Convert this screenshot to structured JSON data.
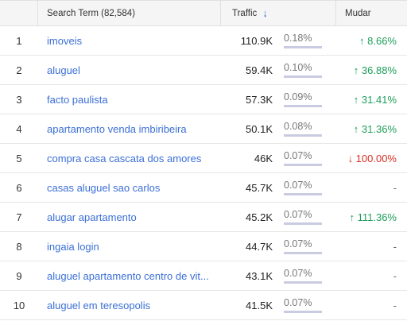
{
  "header": {
    "term_label": "Search Term (82,584)",
    "traffic_label": "Traffic",
    "change_label": "Mudar",
    "sort_icon": "↓"
  },
  "colors": {
    "link": "#3b6fd6",
    "up": "#1e9e5a",
    "down": "#d93025",
    "bar": "#c9cbe0"
  },
  "rows": [
    {
      "rank": "1",
      "term": "imoveis",
      "traffic": "110.9K",
      "share": "0.18%",
      "change": "↑ 8.66%",
      "direction": "up"
    },
    {
      "rank": "2",
      "term": "aluguel",
      "traffic": "59.4K",
      "share": "0.10%",
      "change": "↑ 36.88%",
      "direction": "up"
    },
    {
      "rank": "3",
      "term": "facto paulista",
      "traffic": "57.3K",
      "share": "0.09%",
      "change": "↑ 31.41%",
      "direction": "up"
    },
    {
      "rank": "4",
      "term": "apartamento venda imbiribeira",
      "traffic": "50.1K",
      "share": "0.08%",
      "change": "↑ 31.36%",
      "direction": "up"
    },
    {
      "rank": "5",
      "term": "compra casa cascata dos amores",
      "traffic": "46K",
      "share": "0.07%",
      "change": "↓ 100.00%",
      "direction": "down"
    },
    {
      "rank": "6",
      "term": "casas aluguel sao carlos",
      "traffic": "45.7K",
      "share": "0.07%",
      "change": "-",
      "direction": "none"
    },
    {
      "rank": "7",
      "term": "alugar apartamento",
      "traffic": "45.2K",
      "share": "0.07%",
      "change": "↑ 111.36%",
      "direction": "up"
    },
    {
      "rank": "8",
      "term": "ingaia login",
      "traffic": "44.7K",
      "share": "0.07%",
      "change": "-",
      "direction": "none"
    },
    {
      "rank": "9",
      "term": "aluguel apartamento centro de vit...",
      "traffic": "43.1K",
      "share": "0.07%",
      "change": "-",
      "direction": "none"
    },
    {
      "rank": "10",
      "term": "aluguel em teresopolis",
      "traffic": "41.5K",
      "share": "0.07%",
      "change": "-",
      "direction": "none"
    }
  ]
}
